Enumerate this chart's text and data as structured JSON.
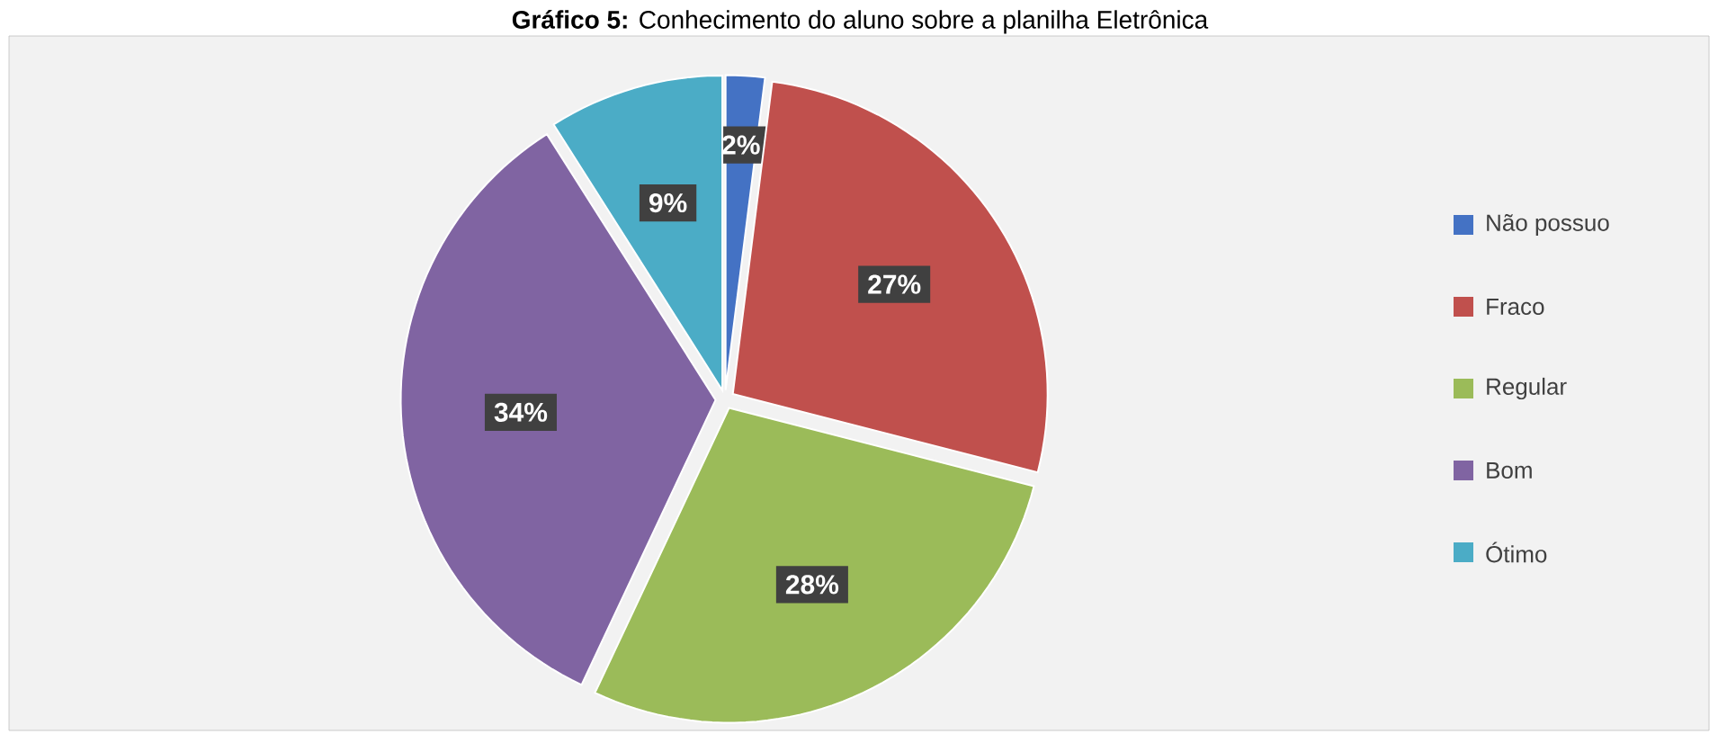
{
  "chart_data": {
    "type": "pie",
    "title": "**Gráfico 5:** Conhecimento do aluno sobre a planilha Eletrônica",
    "categories": [
      "Não possuo",
      "Fraco",
      "Regular",
      "Bom",
      "Ótimo"
    ],
    "values": [
      2,
      27,
      28,
      34,
      9
    ],
    "value_labels": [
      "2%",
      "27%",
      "28%",
      "34%",
      "9%"
    ],
    "colors": [
      "#4472c4",
      "#c0504d",
      "#9bbb59",
      "#8064a2",
      "#4bacc6"
    ],
    "legend": "right"
  }
}
